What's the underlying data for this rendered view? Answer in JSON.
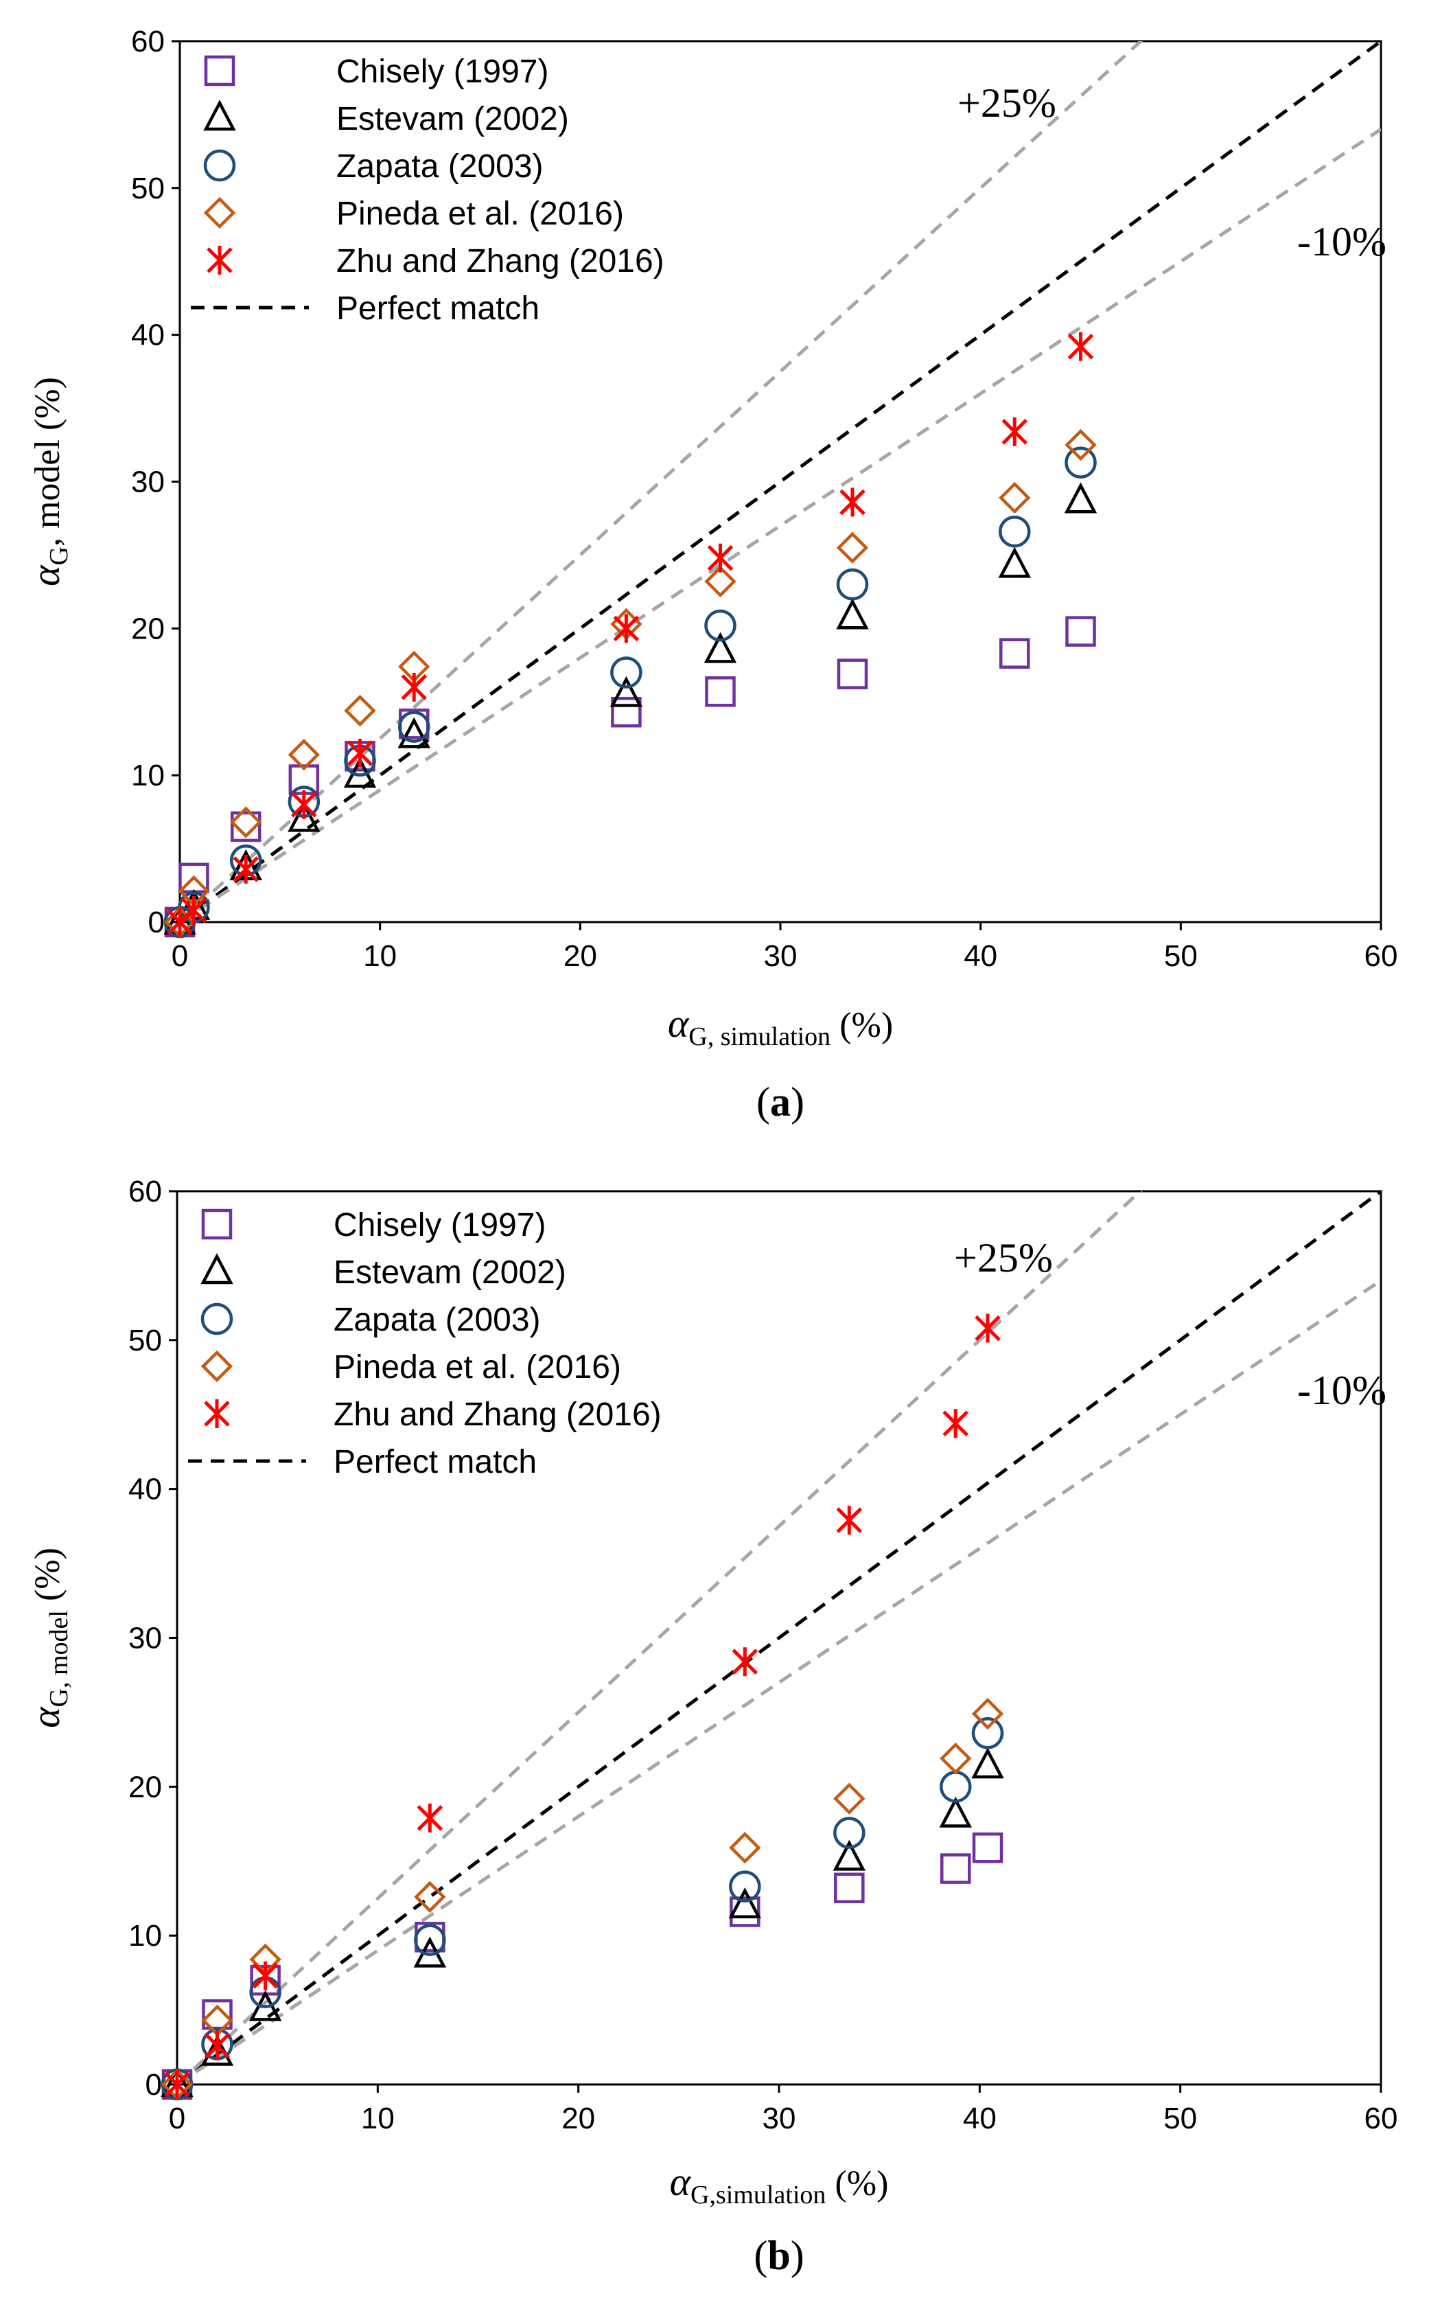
{
  "chart_data": [
    {
      "type": "scatter",
      "panel_label": "a",
      "xlabel": {
        "symbol": "α",
        "subscript": "G, simulation",
        "unit": "(%)"
      },
      "ylabel": {
        "symbol": "α",
        "subscript": "G",
        "suffix": ", model",
        "unit": "(%)"
      },
      "xlim": [
        0,
        60
      ],
      "ylim": [
        0,
        60
      ],
      "xticks": [
        0,
        10,
        20,
        30,
        40,
        50,
        60
      ],
      "yticks": [
        0,
        10,
        20,
        30,
        40,
        50,
        60
      ],
      "legend_position": "top-left",
      "band_labels": {
        "upper": "+25%",
        "lower": "-10%"
      },
      "reference_lines": [
        {
          "name": "Perfect match",
          "slope": 1.0,
          "color": "#000000"
        },
        {
          "name": "+25%",
          "slope": 1.25,
          "color": "#a6a6a6"
        },
        {
          "name": "-10%",
          "slope": 0.9,
          "color": "#a6a6a6"
        }
      ],
      "x": [
        0,
        0.7,
        3.3,
        6.2,
        9.0,
        11.7,
        22.3,
        27.0,
        33.6,
        41.7,
        45.0
      ],
      "series": [
        {
          "name": "Chisely (1997)",
          "marker": "square",
          "color": "#7030a0",
          "values": [
            0,
            3.0,
            6.5,
            9.7,
            11.3,
            13.5,
            14.3,
            15.7,
            16.9,
            18.3,
            19.8
          ]
        },
        {
          "name": "Estevam (2002)",
          "marker": "triangle",
          "color": "#000000",
          "values": [
            0,
            1.0,
            3.7,
            7.0,
            10.0,
            12.7,
            15.5,
            18.5,
            20.8,
            24.3,
            28.7
          ]
        },
        {
          "name": "Zapata (2003)",
          "marker": "circle",
          "color": "#1f4e79",
          "values": [
            0,
            1.0,
            4.2,
            8.2,
            11.0,
            13.3,
            17.0,
            20.2,
            23.0,
            26.6,
            31.3
          ]
        },
        {
          "name": "Pineda et al. (2016)",
          "marker": "diamond",
          "color": "#c55a11",
          "values": [
            0,
            2.1,
            6.8,
            11.4,
            14.4,
            17.4,
            20.3,
            23.2,
            25.5,
            28.9,
            32.5
          ]
        },
        {
          "name": "Zhu and Zhang (2016)",
          "marker": "star",
          "color": "#ff0000",
          "values": [
            0,
            0.8,
            3.6,
            8.0,
            11.5,
            16.0,
            20.0,
            24.8,
            28.6,
            33.4,
            39.2
          ]
        }
      ]
    },
    {
      "type": "scatter",
      "panel_label": "b",
      "xlabel": {
        "symbol": "α",
        "subscript": "G,simulation",
        "unit": "(%)"
      },
      "ylabel": {
        "symbol": "α",
        "subscript": "G, model",
        "suffix": "",
        "unit": "(%)"
      },
      "xlim": [
        0,
        60
      ],
      "ylim": [
        0,
        60
      ],
      "xticks": [
        0,
        10,
        20,
        30,
        40,
        50,
        60
      ],
      "yticks": [
        0,
        10,
        20,
        30,
        40,
        50,
        60
      ],
      "legend_position": "top-left",
      "band_labels": {
        "upper": "+25%",
        "lower": "-10%"
      },
      "reference_lines": [
        {
          "name": "Perfect match",
          "slope": 1.0,
          "color": "#000000"
        },
        {
          "name": "+25%",
          "slope": 1.25,
          "color": "#a6a6a6"
        },
        {
          "name": "-10%",
          "slope": 0.9,
          "color": "#a6a6a6"
        }
      ],
      "x": [
        0,
        2.0,
        4.4,
        12.6,
        28.3,
        33.5,
        38.8,
        40.4
      ],
      "series": [
        {
          "name": "Chisely (1997)",
          "marker": "square",
          "color": "#7030a0",
          "values": [
            0,
            4.7,
            7.0,
            9.9,
            11.6,
            13.2,
            14.5,
            15.9
          ]
        },
        {
          "name": "Estevam (2002)",
          "marker": "triangle",
          "color": "#000000",
          "values": [
            0,
            2.1,
            5.1,
            8.7,
            12.0,
            15.2,
            18.1,
            21.4
          ]
        },
        {
          "name": "Zapata (2003)",
          "marker": "circle",
          "color": "#1f4e79",
          "values": [
            0,
            2.7,
            6.2,
            9.7,
            13.3,
            16.9,
            20.0,
            23.6
          ]
        },
        {
          "name": "Pineda et al. (2016)",
          "marker": "diamond",
          "color": "#c55a11",
          "values": [
            0,
            4.3,
            8.4,
            12.6,
            15.9,
            19.2,
            21.9,
            24.9
          ]
        },
        {
          "name": "Zhu and Zhang (2016)",
          "marker": "star",
          "color": "#ff0000",
          "values": [
            0,
            2.6,
            7.3,
            17.9,
            28.4,
            37.9,
            44.4,
            50.8
          ]
        }
      ]
    }
  ]
}
